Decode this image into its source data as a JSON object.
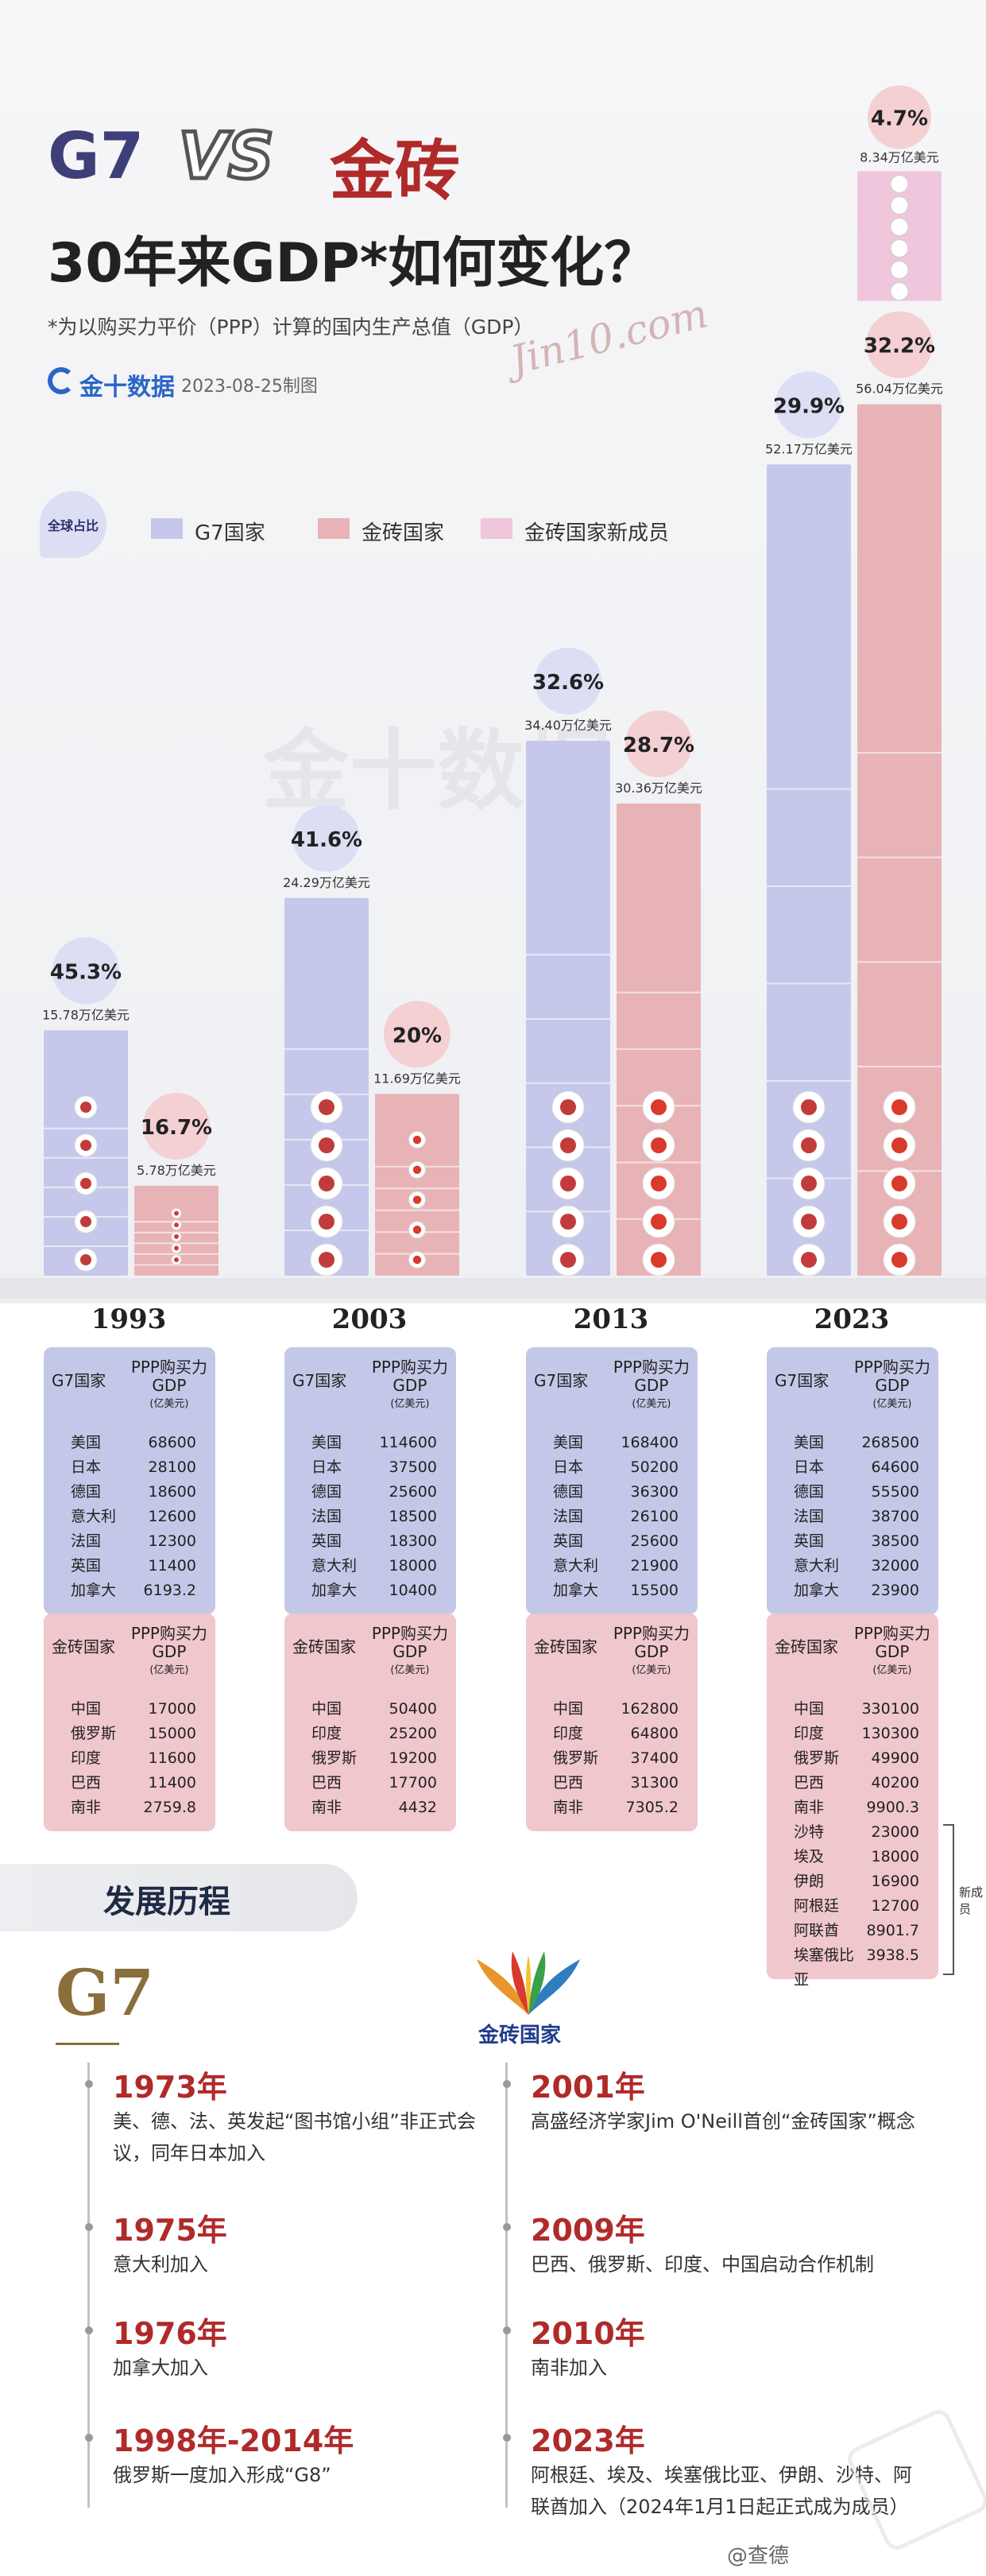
{
  "title": {
    "g7": "G7",
    "vs": "VS",
    "brics": "金砖",
    "subtitle": "30年来GDP*如何变化？",
    "note": "*为以购买力平价（PPP）计算的国内生产总值（GDP）",
    "logo": "金十数据",
    "date": "2023-08-25制图",
    "signature": "Jin10.com"
  },
  "legend": {
    "badge": "全球占比",
    "g7": "G7国家",
    "brics": "金砖国家",
    "new": "金砖国家新成员"
  },
  "colors": {
    "g7": "#c5c8ea",
    "brics": "#eab4b8",
    "new": "#eec9dd",
    "accent_red": "#b02a2a",
    "navy": "#3e3f78"
  },
  "chart_data": {
    "type": "bar",
    "categories": [
      "1993",
      "2003",
      "2013",
      "2023"
    ],
    "series": [
      {
        "name": "G7国家",
        "values": [
          15.78,
          24.29,
          34.4,
          52.17
        ],
        "labels": [
          "15.78万亿美元",
          "24.29万亿美元",
          "34.40万亿美元",
          "52.17万亿美元"
        ],
        "share": [
          "45.3%",
          "41.6%",
          "32.6%",
          "29.9%"
        ]
      },
      {
        "name": "金砖国家",
        "values": [
          5.78,
          11.69,
          30.36,
          56.04
        ],
        "labels": [
          "5.78万亿美元",
          "11.69万亿美元",
          "30.36万亿美元",
          "56.04万亿美元"
        ],
        "share": [
          "16.7%",
          "20%",
          "28.7%",
          "32.2%"
        ]
      },
      {
        "name": "金砖国家新成员",
        "values": [
          0,
          0,
          0,
          8.34
        ],
        "labels": [
          "",
          "",
          "",
          "8.34万亿美元"
        ],
        "share": [
          "",
          "",
          "",
          "4.7%"
        ]
      }
    ],
    "ylim": [
      0,
      64.4
    ]
  },
  "tables": [
    {
      "year": "1993",
      "g7_header": "G7国家",
      "brics_header": "金砖国家",
      "col": "PPP购买力",
      "col2": "GDP",
      "unit": "(亿美元)",
      "g7": [
        [
          "美国",
          "68600"
        ],
        [
          "日本",
          "28100"
        ],
        [
          "德国",
          "18600"
        ],
        [
          "意大利",
          "12600"
        ],
        [
          "法国",
          "12300"
        ],
        [
          "英国",
          "11400"
        ],
        [
          "加拿大",
          "6193.2"
        ]
      ],
      "brics": [
        [
          "中国",
          "17000"
        ],
        [
          "俄罗斯",
          "15000"
        ],
        [
          "印度",
          "11600"
        ],
        [
          "巴西",
          "11400"
        ],
        [
          "南非",
          "2759.8"
        ]
      ]
    },
    {
      "year": "2003",
      "g7_header": "G7国家",
      "brics_header": "金砖国家",
      "col": "PPP购买力",
      "col2": "GDP",
      "unit": "(亿美元)",
      "g7": [
        [
          "美国",
          "114600"
        ],
        [
          "日本",
          "37500"
        ],
        [
          "德国",
          "25600"
        ],
        [
          "法国",
          "18500"
        ],
        [
          "英国",
          "18300"
        ],
        [
          "意大利",
          "18000"
        ],
        [
          "加拿大",
          "10400"
        ]
      ],
      "brics": [
        [
          "中国",
          "50400"
        ],
        [
          "印度",
          "25200"
        ],
        [
          "俄罗斯",
          "19200"
        ],
        [
          "巴西",
          "17700"
        ],
        [
          "南非",
          "4432"
        ]
      ]
    },
    {
      "year": "2013",
      "g7_header": "G7国家",
      "brics_header": "金砖国家",
      "col": "PPP购买力",
      "col2": "GDP",
      "unit": "(亿美元)",
      "g7": [
        [
          "美国",
          "168400"
        ],
        [
          "日本",
          "50200"
        ],
        [
          "德国",
          "36300"
        ],
        [
          "法国",
          "26100"
        ],
        [
          "英国",
          "25600"
        ],
        [
          "意大利",
          "21900"
        ],
        [
          "加拿大",
          "15500"
        ]
      ],
      "brics": [
        [
          "中国",
          "162800"
        ],
        [
          "印度",
          "64800"
        ],
        [
          "俄罗斯",
          "37400"
        ],
        [
          "巴西",
          "31300"
        ],
        [
          "南非",
          "7305.2"
        ]
      ]
    },
    {
      "year": "2023",
      "g7_header": "G7国家",
      "brics_header": "金砖国家",
      "col": "PPP购买力",
      "col2": "GDP",
      "unit": "(亿美元)",
      "g7": [
        [
          "美国",
          "268500"
        ],
        [
          "日本",
          "64600"
        ],
        [
          "德国",
          "55500"
        ],
        [
          "法国",
          "38700"
        ],
        [
          "英国",
          "38500"
        ],
        [
          "意大利",
          "32000"
        ],
        [
          "加拿大",
          "23900"
        ]
      ],
      "brics": [
        [
          "中国",
          "330100"
        ],
        [
          "印度",
          "130300"
        ],
        [
          "俄罗斯",
          "49900"
        ],
        [
          "巴西",
          "40200"
        ],
        [
          "南非",
          "9900.3"
        ],
        [
          "沙特",
          "23000"
        ],
        [
          "埃及",
          "18000"
        ],
        [
          "伊朗",
          "16900"
        ],
        [
          "阿根廷",
          "12700"
        ],
        [
          "阿联酋",
          "8901.7"
        ],
        [
          "埃塞俄比亚",
          "3938.5"
        ]
      ],
      "new_label": "新成员"
    }
  ],
  "history": {
    "title": "发展历程",
    "g7_logo": "G7",
    "brics_logo": "金砖国家",
    "g7": [
      {
        "year": "1973年",
        "text": "美、德、法、英发起“图书馆小组”非正式会议，同年日本加入"
      },
      {
        "year": "1975年",
        "text": "意大利加入"
      },
      {
        "year": "1976年",
        "text": "加拿大加入"
      },
      {
        "year": "1998年-2014年",
        "text": "俄罗斯一度加入形成“G8”"
      }
    ],
    "brics": [
      {
        "year": "2001年",
        "text": "高盛经济学家Jim O'Neill首创“金砖国家”概念"
      },
      {
        "year": "2009年",
        "text": "巴西、俄罗斯、印度、中国启动合作机制"
      },
      {
        "year": "2010年",
        "text": "南非加入"
      },
      {
        "year": "2023年",
        "text": "阿根廷、埃及、埃塞俄比亚、伊朗、沙特、阿联酋加入（2024年1月1日起正式成为成员）"
      }
    ]
  },
  "footer": "@查德"
}
